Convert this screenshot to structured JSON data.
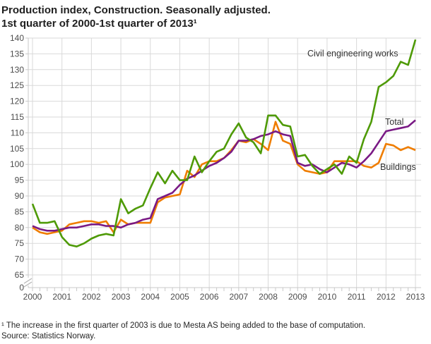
{
  "title": {
    "line1": "Production index, Construction. Seasonally adjusted.",
    "line2": "1st quarter of 2000-1st quarter of 2013¹"
  },
  "footnote": {
    "note": "¹ The increase in the first quarter of 2003 is due to Mesta AS being added to the base of computation.",
    "source": "Source: Statistics Norway."
  },
  "chart_data": {
    "type": "line",
    "title": "Production index, Construction. Seasonally adjusted. 1st quarter of 2000-1st quarter of 2013",
    "x_unit": "quarter",
    "x_range": [
      "2000 Q1",
      "2013 Q1"
    ],
    "points_per_year": 4,
    "x_tick_labels": [
      "2000",
      "2001",
      "2002",
      "2003",
      "2004",
      "2005",
      "2006",
      "2007",
      "2008",
      "2009",
      "2010",
      "2011",
      "2012",
      "2013"
    ],
    "y_ticks": [
      0,
      65,
      70,
      75,
      80,
      85,
      90,
      95,
      100,
      105,
      110,
      115,
      120,
      125,
      130,
      135,
      140
    ],
    "y_display_range": [
      65,
      140
    ],
    "axis_break_below": 65,
    "grid": true,
    "legend_position": "inline-labels",
    "series": [
      {
        "name": "Civil engineering works",
        "color": "#4e9a06",
        "values": [
          87.5,
          81.5,
          81.5,
          82,
          77,
          74.5,
          74,
          75,
          76.5,
          77.5,
          78,
          77.5,
          89,
          84.5,
          86,
          87,
          92.5,
          97.5,
          94,
          98,
          95,
          95,
          102.5,
          97.5,
          101,
          104,
          105,
          109.5,
          113,
          108.5,
          107,
          103.5,
          115.5,
          115.5,
          112.5,
          112,
          102.5,
          103,
          99.5,
          97,
          98.5,
          100,
          97,
          102.5,
          100.5,
          108,
          113.5,
          124.5,
          126,
          128,
          132.5,
          131.5,
          139.5
        ]
      },
      {
        "name": "Total",
        "color": "#7a1a85",
        "values": [
          80.5,
          79.5,
          79,
          79,
          79.5,
          80,
          80,
          80.5,
          81,
          81,
          80.5,
          80.5,
          80,
          81,
          81.5,
          82.5,
          83,
          89,
          90,
          91,
          93.5,
          95.5,
          96.5,
          98,
          99.5,
          100.5,
          102,
          104,
          107.5,
          107.5,
          108,
          109,
          109.5,
          110.5,
          109.5,
          109,
          100.5,
          99.5,
          100,
          98.5,
          97.5,
          99,
          100.5,
          100,
          99,
          101,
          103.5,
          107,
          110.5,
          111,
          111.5,
          112,
          114
        ]
      },
      {
        "name": "Buildings",
        "color": "#ef7d00",
        "values": [
          80,
          78.5,
          78,
          78.5,
          79,
          81,
          81.5,
          82,
          82,
          81.5,
          82,
          78.5,
          82.5,
          81,
          81.5,
          81.5,
          81.5,
          88,
          89.5,
          90,
          90.5,
          98,
          96,
          100,
          101,
          101,
          102,
          104.5,
          107.5,
          107,
          108,
          106.5,
          104.5,
          113.5,
          107.5,
          106.5,
          100,
          98,
          97.5,
          97,
          97.5,
          101,
          101,
          101,
          101,
          99.5,
          99,
          100.5,
          106.5,
          106,
          104.5,
          105.5,
          104.5
        ]
      }
    ],
    "colors": {
      "grid": "#d9d9d9",
      "axis": "#c9c9c9",
      "tick_label": "#4d4d4d",
      "series_label": "#333333"
    }
  }
}
